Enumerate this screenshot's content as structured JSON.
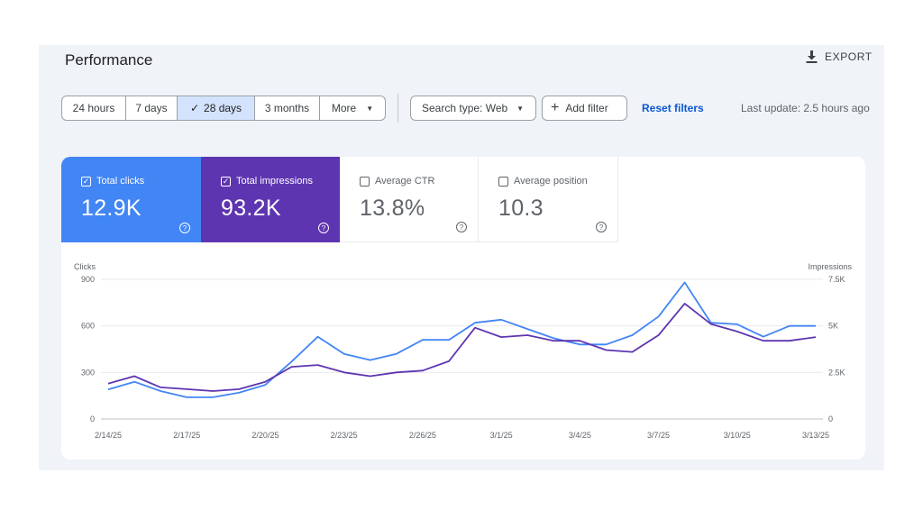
{
  "header": {
    "title": "Performance",
    "export_label": "EXPORT"
  },
  "date_range": {
    "options": [
      "24 hours",
      "7 days",
      "28 days",
      "3 months",
      "More"
    ],
    "selected": "28 days"
  },
  "filters": {
    "search_type": "Search type: Web",
    "add_filter": "Add filter",
    "reset": "Reset filters",
    "last_update": "Last update: 2.5 hours ago"
  },
  "metrics": [
    {
      "label": "Total clicks",
      "value": "12.9K",
      "checked": true,
      "color": "#4285f4"
    },
    {
      "label": "Total impressions",
      "value": "93.2K",
      "checked": true,
      "color": "#5e35b1"
    },
    {
      "label": "Average CTR",
      "value": "13.8%",
      "checked": false
    },
    {
      "label": "Average position",
      "value": "10.3",
      "checked": false
    }
  ],
  "icons": {
    "export": "download-icon",
    "check": "check-icon",
    "dropdown": "chevron-down-icon",
    "add": "plus-icon",
    "help": "help-icon"
  },
  "chart_data": {
    "type": "line",
    "x": [
      "2/14/25",
      "2/15/25",
      "2/16/25",
      "2/17/25",
      "2/18/25",
      "2/19/25",
      "2/20/25",
      "2/21/25",
      "2/22/25",
      "2/23/25",
      "2/24/25",
      "2/25/25",
      "2/26/25",
      "2/27/25",
      "2/28/25",
      "3/1/25",
      "3/2/25",
      "3/3/25",
      "3/4/25",
      "3/5/25",
      "3/6/25",
      "3/7/25",
      "3/8/25",
      "3/9/25",
      "3/10/25",
      "3/11/25",
      "3/12/25",
      "3/13/25"
    ],
    "x_tick_labels": [
      "2/14/25",
      "2/17/25",
      "2/20/25",
      "2/23/25",
      "2/26/25",
      "3/1/25",
      "3/4/25",
      "3/7/25",
      "3/10/25",
      "3/13/25"
    ],
    "series": [
      {
        "name": "Clicks",
        "axis": "left",
        "color": "#4285f4",
        "values": [
          190,
          240,
          180,
          140,
          140,
          170,
          220,
          370,
          530,
          420,
          380,
          420,
          510,
          510,
          620,
          640,
          580,
          520,
          480,
          480,
          540,
          660,
          880,
          620,
          610,
          530,
          600,
          600
        ]
      },
      {
        "name": "Impressions",
        "axis": "right",
        "color": "#5e35b1",
        "values": [
          1900,
          2300,
          1700,
          1600,
          1500,
          1600,
          2000,
          2800,
          2900,
          2500,
          2300,
          2500,
          2600,
          3100,
          4900,
          4400,
          4500,
          4200,
          4200,
          3700,
          3600,
          4500,
          6200,
          5100,
          4700,
          4200,
          4200,
          4400
        ]
      }
    ],
    "ylabel_left": "Clicks",
    "ylabel_right": "Impressions",
    "ylim_left": [
      0,
      900
    ],
    "ylim_right": [
      0,
      7500
    ],
    "yticks_left": [
      "0",
      "300",
      "600",
      "900"
    ],
    "yticks_right": [
      "0",
      "2.5K",
      "5K",
      "7.5K"
    ],
    "grid": true
  }
}
